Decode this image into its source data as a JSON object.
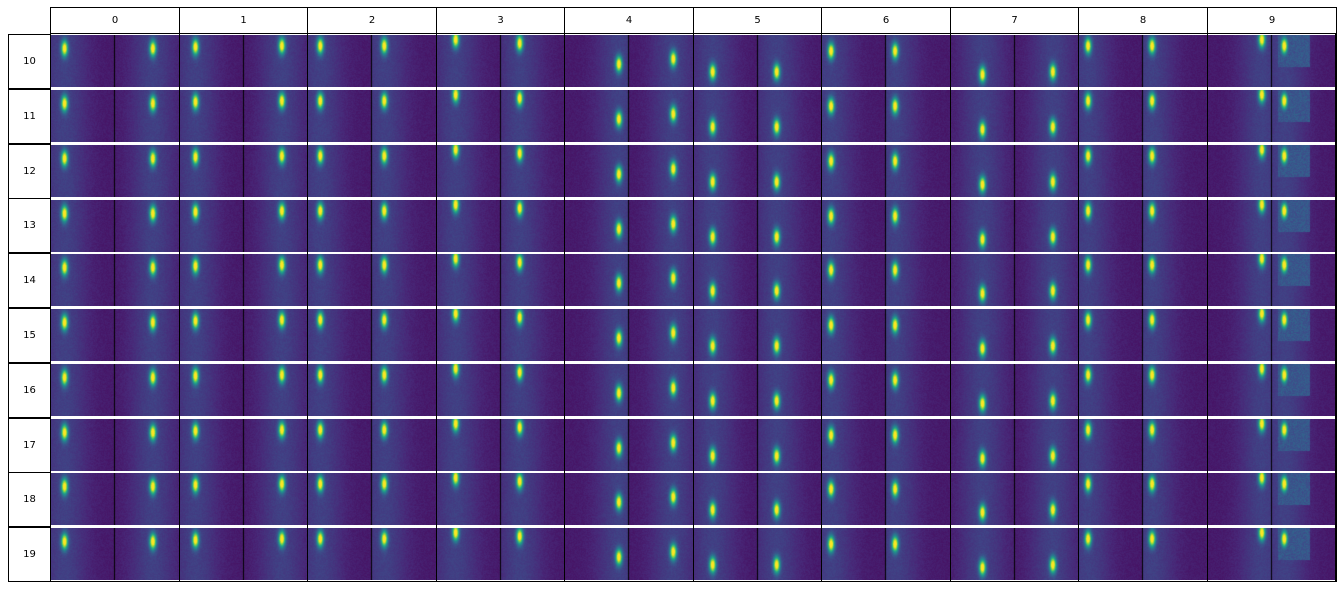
{
  "table": {
    "column_headers": [
      "0",
      "1",
      "2",
      "3",
      "4",
      "5",
      "6",
      "7",
      "8",
      "9"
    ],
    "row_headers": [
      "10",
      "11",
      "12",
      "13",
      "14",
      "15",
      "16",
      "17",
      "18",
      "19"
    ]
  },
  "colors": {
    "colormap": "viridis",
    "background_dark": "#440154",
    "mid_teal": "#21918c",
    "bright_yellow": "#fde725",
    "grid_line": "#000000",
    "row_separator": "#ffffff"
  }
}
